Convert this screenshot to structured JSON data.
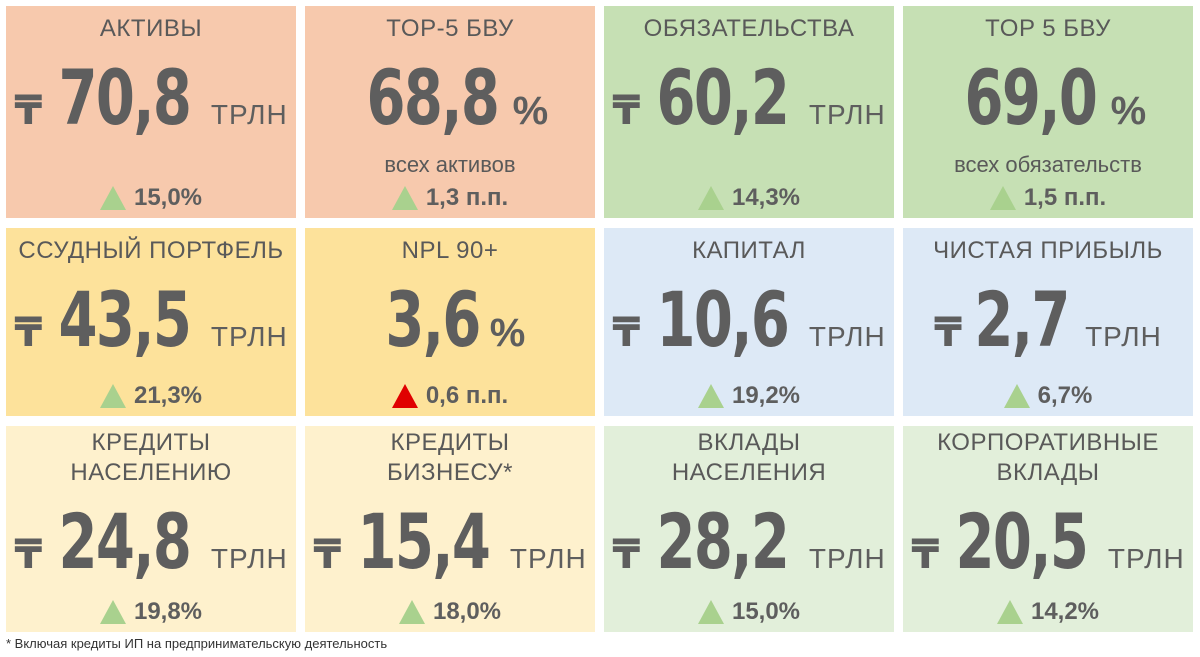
{
  "colors": {
    "salmon": "#f7c9ad",
    "gold": "#fde29b",
    "cream": "#fef1cd",
    "green": "#c6e0b4",
    "blue": "#dde9f6",
    "light_green": "#e2efda",
    "up_arrow": "#a9d18e",
    "down_arrow": "#e00000"
  },
  "tiles": {
    "assets": {
      "title": "АКТИВЫ",
      "currency": "₸",
      "value": "70,8",
      "unit": "ТРЛН",
      "change": "15,0%",
      "arrow": "up-green"
    },
    "top5_assets": {
      "title": "TOP-5 БВУ",
      "value": "68,8",
      "pct": "%",
      "sub": "всех активов",
      "change": "1,3 п.п.",
      "arrow": "up-green"
    },
    "liabilities": {
      "title": "ОБЯЗАТЕЛЬСТВА",
      "currency": "₸",
      "value": "60,2",
      "unit": "ТРЛН",
      "change": "14,3%",
      "arrow": "up-green"
    },
    "top5_liabilities": {
      "title": "TOP 5 БВУ",
      "value": "69,0",
      "pct": "%",
      "sub": "всех обязательств",
      "change": "1,5 п.п.",
      "arrow": "up-green"
    },
    "loan_portfolio": {
      "title": "ССУДНЫЙ ПОРТФЕЛЬ",
      "currency": "₸",
      "value": "43,5",
      "unit": "ТРЛН",
      "change": "21,3%",
      "arrow": "up-green"
    },
    "npl": {
      "title": "NPL 90+",
      "value": "3,6",
      "pct": "%",
      "change": "0,6 п.п.",
      "arrow": "up-red"
    },
    "capital": {
      "title": "КАПИТАЛ",
      "currency": "₸",
      "value": "10,6",
      "unit": "ТРЛН",
      "change": "19,2%",
      "arrow": "up-green"
    },
    "net_profit": {
      "title": "ЧИСТАЯ ПРИБЫЛЬ",
      "currency": "₸",
      "value": "2,7",
      "unit": "ТРЛН",
      "change": "6,7%",
      "arrow": "up-green"
    },
    "retail_loans": {
      "title_line1": "КРЕДИТЫ",
      "title_line2": "НАСЕЛЕНИЮ",
      "currency": "₸",
      "value": "24,8",
      "unit": "ТРЛН",
      "change": "19,8%",
      "arrow": "up-green"
    },
    "business_loans": {
      "title_line1": "КРЕДИТЫ",
      "title_line2": "БИЗНЕСУ*",
      "currency": "₸",
      "value": "15,4",
      "unit": "ТРЛН",
      "change": "18,0%",
      "arrow": "up-green"
    },
    "retail_deposits": {
      "title_line1": "ВКЛАДЫ",
      "title_line2": "НАСЕЛЕНИЯ",
      "currency": "₸",
      "value": "28,2",
      "unit": "ТРЛН",
      "change": "15,0%",
      "arrow": "up-green"
    },
    "corporate_deposits": {
      "title_line1": "КОРПОРАТИВНЫЕ",
      "title_line2": "ВКЛАДЫ",
      "currency": "₸",
      "value": "20,5",
      "unit": "ТРЛН",
      "change": "14,2%",
      "arrow": "up-green"
    }
  },
  "footnote": "* Включая кредиты ИП на предпринимательскую деятельность"
}
